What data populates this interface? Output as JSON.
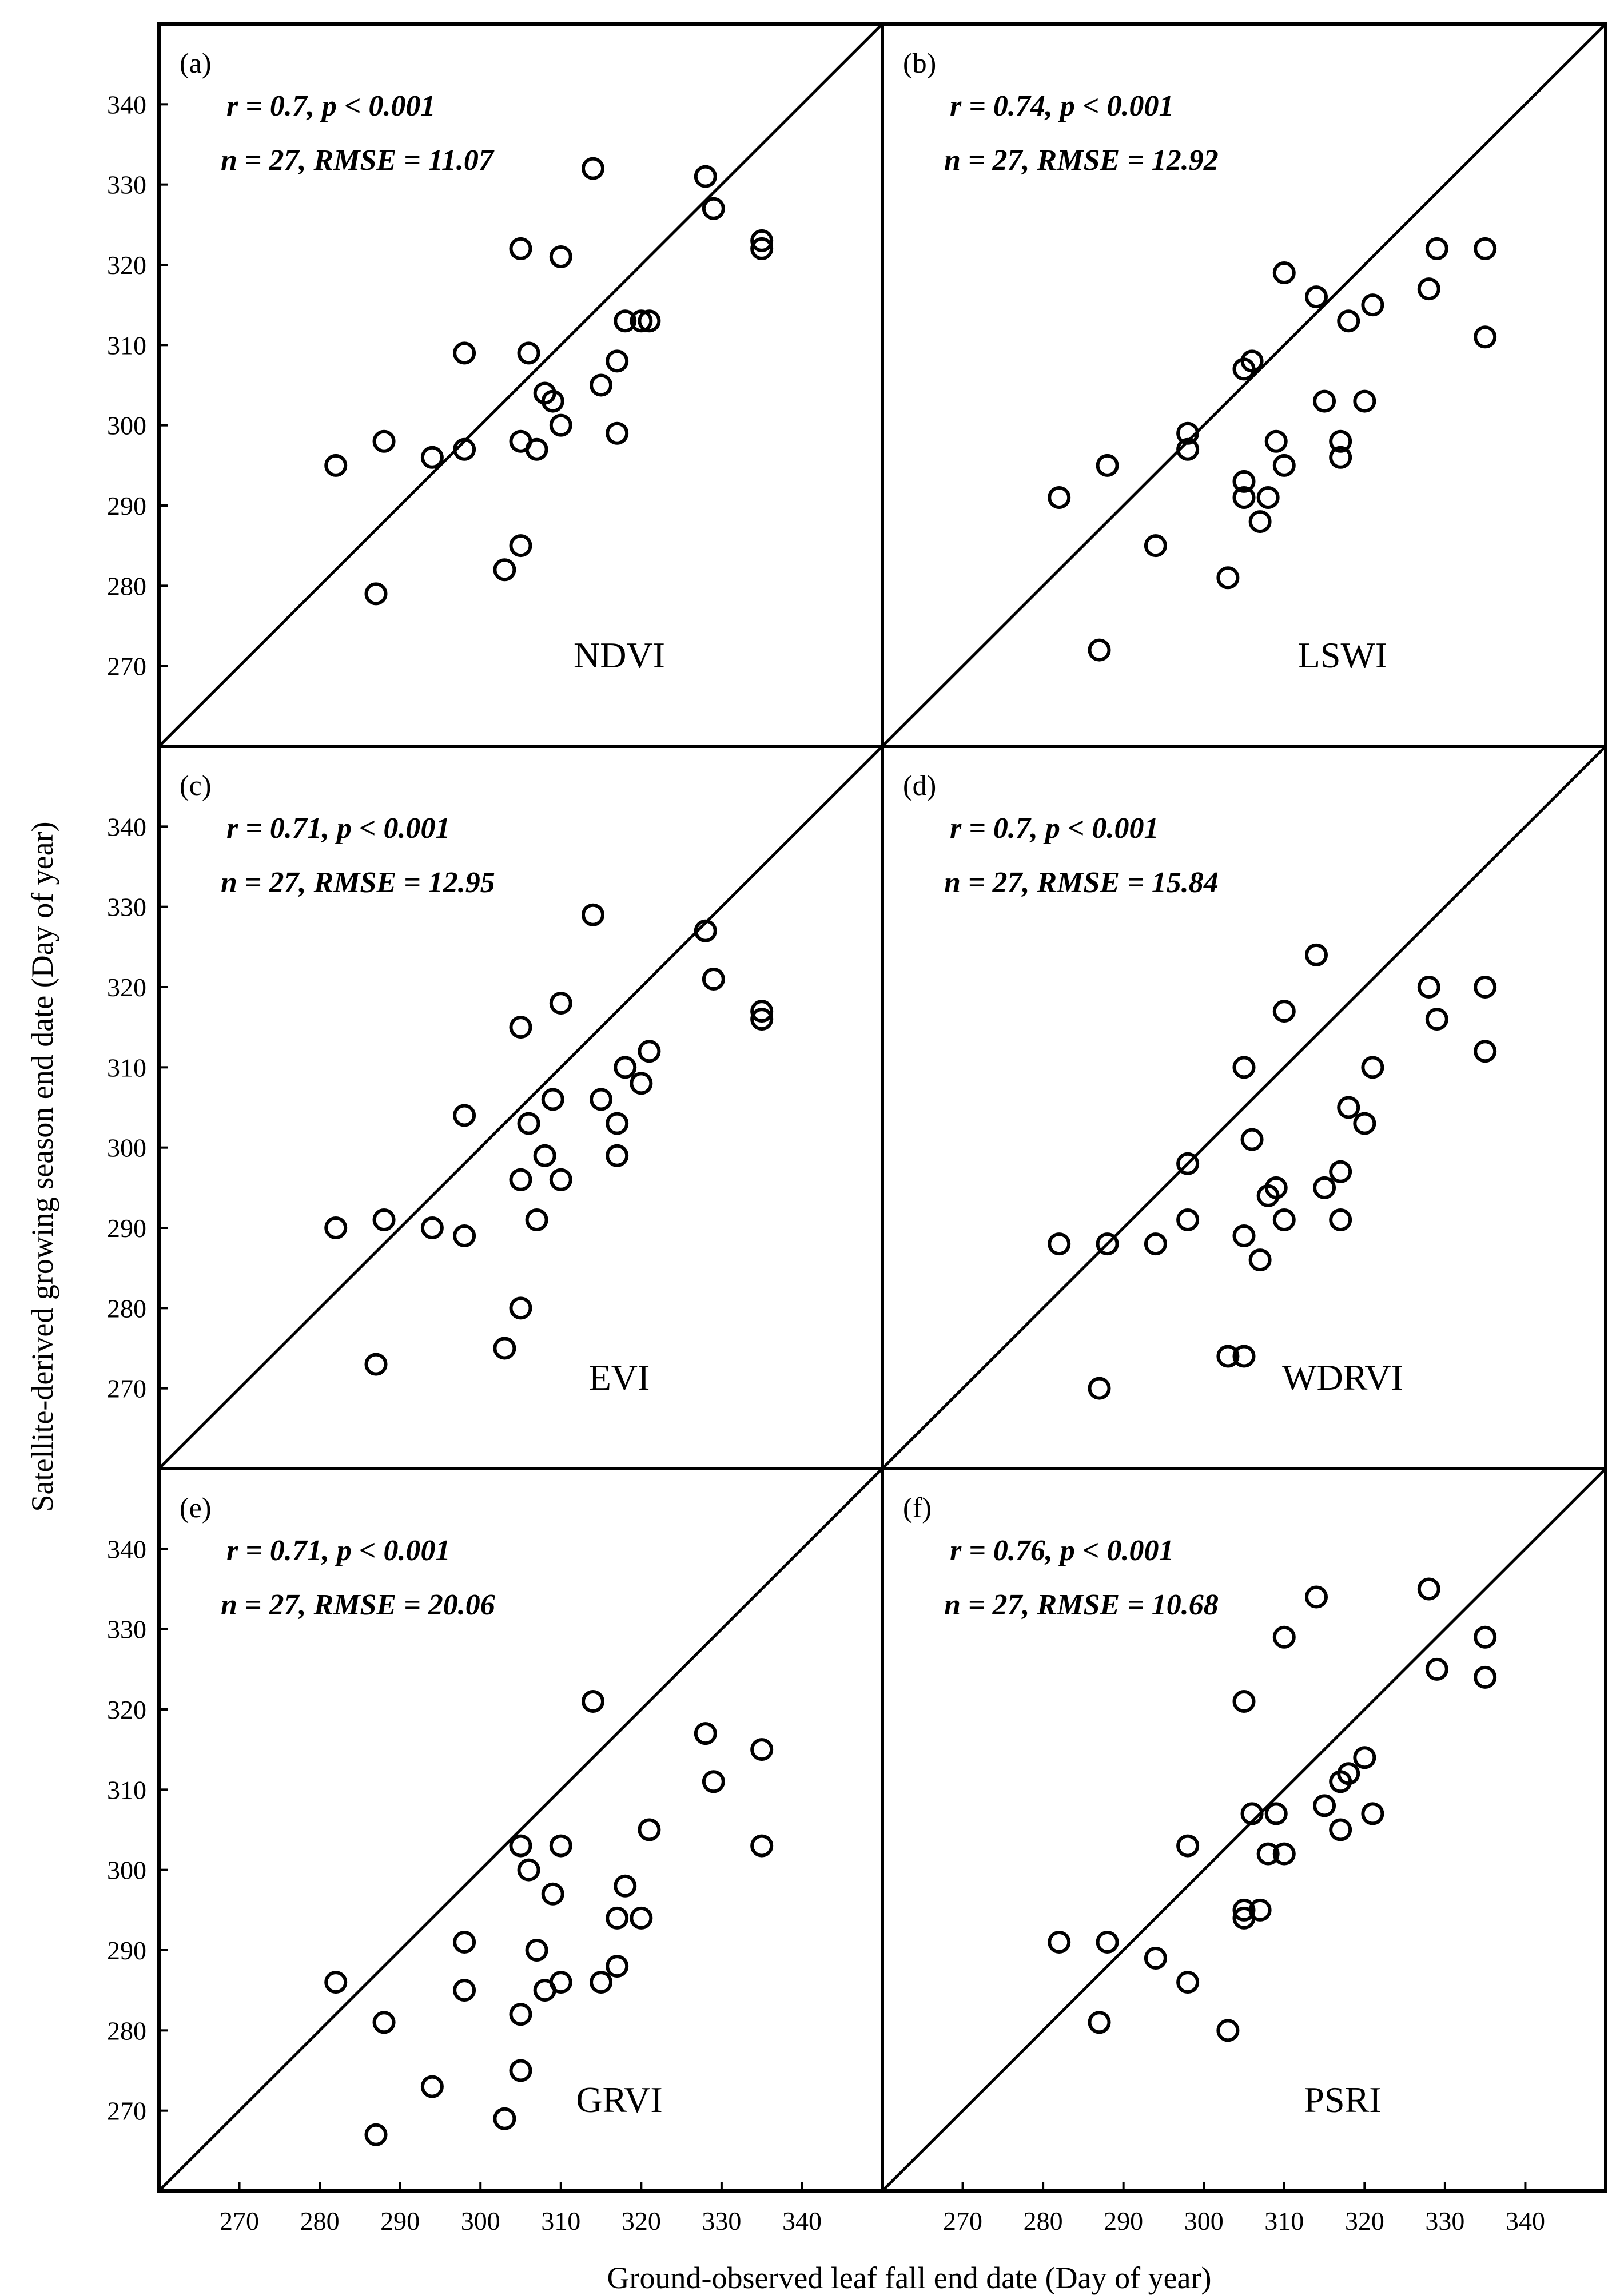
{
  "chart_data": {
    "type": "scatter",
    "xlabel": "Ground-observed leaf fall end date (Day of year)",
    "ylabel": "Satellite-derived growing season end date (Day of year)",
    "xlim": [
      260,
      350
    ],
    "ylim": [
      260,
      350
    ],
    "xticks": [
      270,
      280,
      290,
      300,
      310,
      320,
      330,
      340
    ],
    "yticks": [
      270,
      280,
      290,
      300,
      310,
      320,
      330,
      340
    ],
    "reference_line": "1:1",
    "panels": [
      {
        "letter": "(a)",
        "index": "NDVI",
        "stats_line1": "r = 0.7, p < 0.001",
        "stats_line2": "n = 27, RMSE = 11.07",
        "points": [
          [
            282,
            295
          ],
          [
            287,
            279
          ],
          [
            288,
            298
          ],
          [
            294,
            296
          ],
          [
            298,
            309
          ],
          [
            298,
            297
          ],
          [
            303,
            282
          ],
          [
            305,
            322
          ],
          [
            305,
            298
          ],
          [
            305,
            285
          ],
          [
            306,
            309
          ],
          [
            307,
            297
          ],
          [
            308,
            304
          ],
          [
            309,
            303
          ],
          [
            310,
            300
          ],
          [
            310,
            321
          ],
          [
            314,
            332
          ],
          [
            315,
            305
          ],
          [
            317,
            308
          ],
          [
            317,
            299
          ],
          [
            318,
            313
          ],
          [
            320,
            313
          ],
          [
            321,
            313
          ],
          [
            328,
            331
          ],
          [
            329,
            327
          ],
          [
            335,
            323
          ],
          [
            335,
            322
          ]
        ]
      },
      {
        "letter": "(b)",
        "index": "LSWI",
        "stats_line1": "r = 0.74, p < 0.001",
        "stats_line2": "n = 27, RMSE = 12.92",
        "points": [
          [
            282,
            291
          ],
          [
            287,
            272
          ],
          [
            288,
            295
          ],
          [
            294,
            285
          ],
          [
            298,
            297
          ],
          [
            298,
            299
          ],
          [
            303,
            281
          ],
          [
            305,
            293
          ],
          [
            305,
            307
          ],
          [
            305,
            291
          ],
          [
            306,
            308
          ],
          [
            307,
            288
          ],
          [
            308,
            291
          ],
          [
            309,
            298
          ],
          [
            310,
            295
          ],
          [
            310,
            319
          ],
          [
            314,
            316
          ],
          [
            315,
            303
          ],
          [
            317,
            296
          ],
          [
            317,
            298
          ],
          [
            318,
            313
          ],
          [
            320,
            303
          ],
          [
            321,
            315
          ],
          [
            328,
            317
          ],
          [
            329,
            322
          ],
          [
            335,
            322
          ],
          [
            335,
            311
          ]
        ]
      },
      {
        "letter": "(c)",
        "index": "EVI",
        "stats_line1": "r = 0.71, p < 0.001",
        "stats_line2": "n = 27, RMSE = 12.95",
        "points": [
          [
            282,
            290
          ],
          [
            287,
            273
          ],
          [
            288,
            291
          ],
          [
            294,
            290
          ],
          [
            298,
            304
          ],
          [
            298,
            289
          ],
          [
            303,
            275
          ],
          [
            305,
            315
          ],
          [
            305,
            296
          ],
          [
            305,
            280
          ],
          [
            306,
            303
          ],
          [
            307,
            291
          ],
          [
            308,
            299
          ],
          [
            309,
            306
          ],
          [
            310,
            296
          ],
          [
            310,
            318
          ],
          [
            314,
            329
          ],
          [
            315,
            306
          ],
          [
            317,
            303
          ],
          [
            317,
            299
          ],
          [
            318,
            310
          ],
          [
            320,
            308
          ],
          [
            321,
            312
          ],
          [
            328,
            327
          ],
          [
            329,
            321
          ],
          [
            335,
            317
          ],
          [
            335,
            316
          ]
        ]
      },
      {
        "letter": "(d)",
        "index": "WDRVI",
        "stats_line1": "r = 0.7, p < 0.001",
        "stats_line2": "n = 27, RMSE = 15.84",
        "points": [
          [
            282,
            288
          ],
          [
            287,
            270
          ],
          [
            288,
            288
          ],
          [
            294,
            288
          ],
          [
            298,
            298
          ],
          [
            298,
            291
          ],
          [
            303,
            274
          ],
          [
            305,
            310
          ],
          [
            305,
            289
          ],
          [
            305,
            274
          ],
          [
            306,
            301
          ],
          [
            307,
            286
          ],
          [
            308,
            294
          ],
          [
            309,
            295
          ],
          [
            310,
            291
          ],
          [
            310,
            317
          ],
          [
            314,
            324
          ],
          [
            315,
            295
          ],
          [
            317,
            297
          ],
          [
            317,
            291
          ],
          [
            318,
            305
          ],
          [
            320,
            303
          ],
          [
            321,
            310
          ],
          [
            328,
            320
          ],
          [
            329,
            316
          ],
          [
            335,
            320
          ],
          [
            335,
            312
          ]
        ]
      },
      {
        "letter": "(e)",
        "index": "GRVI",
        "stats_line1": "r = 0.71, p < 0.001",
        "stats_line2": "n = 27, RMSE = 20.06",
        "points": [
          [
            282,
            286
          ],
          [
            287,
            267
          ],
          [
            288,
            281
          ],
          [
            294,
            273
          ],
          [
            298,
            291
          ],
          [
            298,
            285
          ],
          [
            303,
            269
          ],
          [
            305,
            303
          ],
          [
            305,
            282
          ],
          [
            305,
            275
          ],
          [
            306,
            300
          ],
          [
            307,
            290
          ],
          [
            308,
            285
          ],
          [
            309,
            297
          ],
          [
            310,
            286
          ],
          [
            310,
            303
          ],
          [
            314,
            321
          ],
          [
            315,
            286
          ],
          [
            317,
            288
          ],
          [
            317,
            294
          ],
          [
            318,
            298
          ],
          [
            320,
            294
          ],
          [
            321,
            305
          ],
          [
            328,
            317
          ],
          [
            329,
            311
          ],
          [
            335,
            315
          ],
          [
            335,
            303
          ]
        ]
      },
      {
        "letter": "(f)",
        "index": "PSRI",
        "stats_line1": "r = 0.76, p < 0.001",
        "stats_line2": "n = 27, RMSE = 10.68",
        "points": [
          [
            282,
            291
          ],
          [
            287,
            281
          ],
          [
            288,
            291
          ],
          [
            294,
            289
          ],
          [
            298,
            303
          ],
          [
            298,
            286
          ],
          [
            303,
            280
          ],
          [
            305,
            321
          ],
          [
            305,
            295
          ],
          [
            305,
            294
          ],
          [
            306,
            307
          ],
          [
            307,
            295
          ],
          [
            308,
            302
          ],
          [
            309,
            307
          ],
          [
            310,
            302
          ],
          [
            310,
            329
          ],
          [
            314,
            334
          ],
          [
            315,
            308
          ],
          [
            317,
            311
          ],
          [
            317,
            305
          ],
          [
            318,
            312
          ],
          [
            320,
            314
          ],
          [
            321,
            307
          ],
          [
            328,
            335
          ],
          [
            329,
            325
          ],
          [
            335,
            329
          ],
          [
            335,
            324
          ]
        ]
      }
    ]
  }
}
